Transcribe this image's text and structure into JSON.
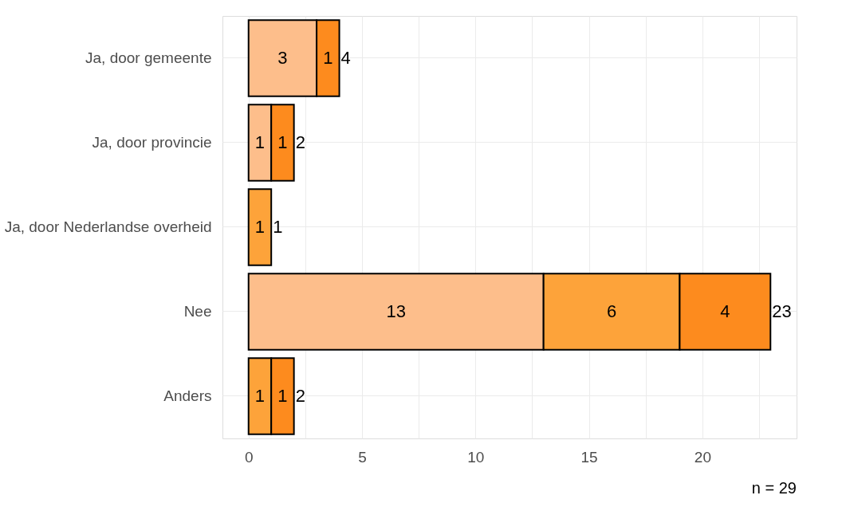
{
  "chart_data": {
    "type": "bar",
    "orientation": "horizontal",
    "stacked": true,
    "categories": [
      "Ja, door gemeente",
      "Ja, door provincie",
      "Ja, door Nederlandse overheid",
      "Nee",
      "Anders"
    ],
    "series": [
      {
        "color": "#fdbe8b",
        "values": [
          3,
          1,
          null,
          13,
          null
        ]
      },
      {
        "color": "#fda33a",
        "values": [
          null,
          null,
          1,
          6,
          1
        ]
      },
      {
        "color": "#fd8b1e",
        "values": [
          1,
          1,
          null,
          4,
          1
        ]
      }
    ],
    "xlim": [
      -1.15,
      24.15
    ],
    "xticks": [
      0,
      {
        "value": 2.5,
        "label": null
      },
      5,
      {
        "value": 7.5,
        "label": null
      },
      10,
      {
        "value": 12.5,
        "label": null
      },
      15,
      {
        "value": 17.5,
        "label": null
      },
      20,
      {
        "value": 22.5,
        "label": null
      }
    ],
    "grid": true,
    "legend": false,
    "data_labels": true,
    "totals": [
      "4",
      "2",
      "1",
      "23",
      "2"
    ],
    "annotations": [
      "n = 29"
    ]
  }
}
